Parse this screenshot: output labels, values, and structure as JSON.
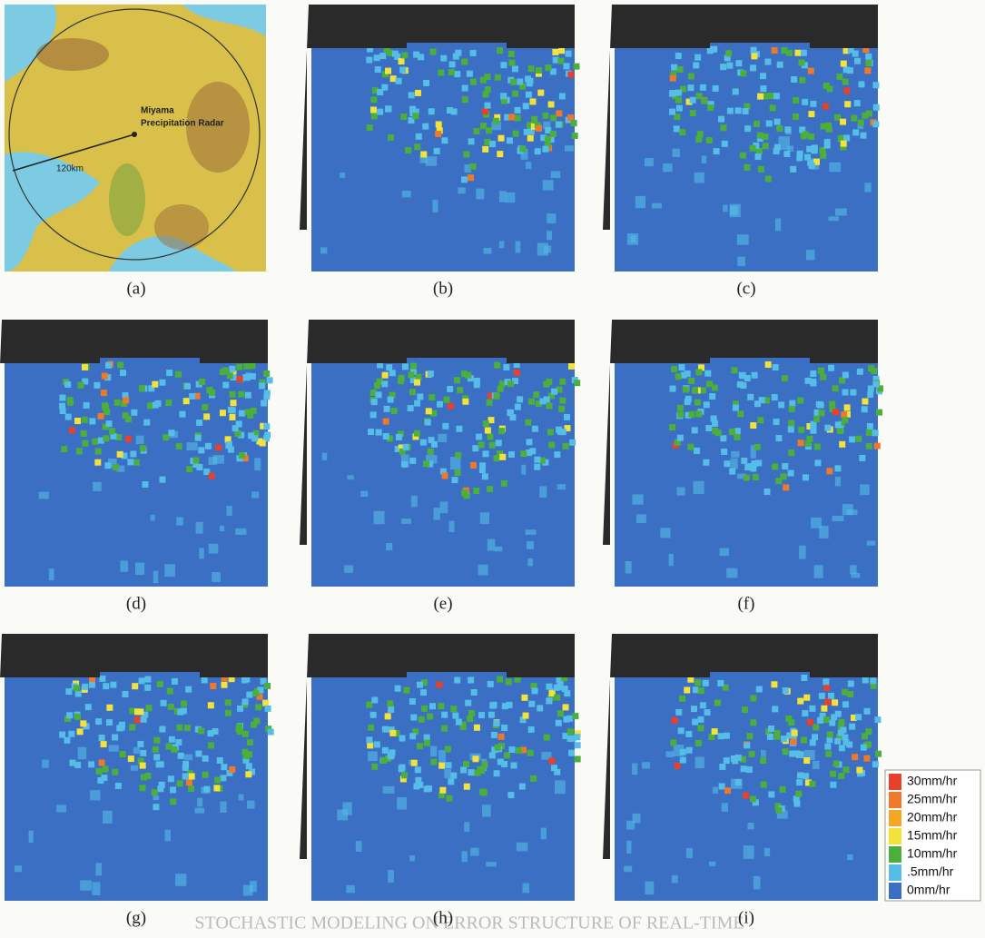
{
  "map": {
    "radar_label": [
      "Miyama",
      "Precipitation Radar"
    ],
    "radius_label": "120km"
  },
  "panels": [
    "(a)",
    "(b)",
    "(c)",
    "(d)",
    "(e)",
    "(f)",
    "(g)",
    "(h)",
    "(i)"
  ],
  "legend": [
    {
      "label": "30mm/hr",
      "color": "#e8402a"
    },
    {
      "label": "25mm/hr",
      "color": "#f0782a"
    },
    {
      "label": "20mm/hr",
      "color": "#f5a623"
    },
    {
      "label": "15mm/hr",
      "color": "#f2e23a"
    },
    {
      "label": "10mm/hr",
      "color": "#4caf3c"
    },
    {
      "label": ".5mm/hr",
      "color": "#55bde8"
    },
    {
      "label": "0mm/hr",
      "color": "#3a6fc4"
    }
  ],
  "footer": "STOCHASTIC MODELING ON ERROR STRUCTURE OF REAL-TIME"
}
